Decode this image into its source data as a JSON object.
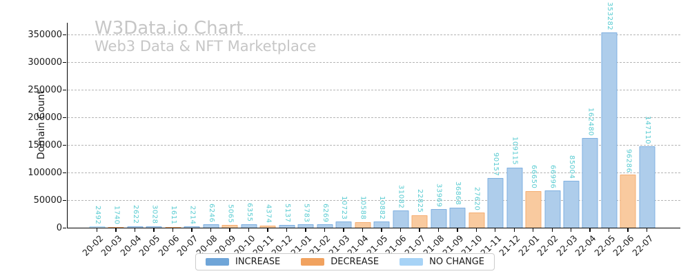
{
  "chart_data": {
    "type": "bar",
    "title": "W3Data.io Chart",
    "subtitle": "Web3 Data & NFT Marketplace",
    "xlabel": "",
    "ylabel": "Domain Count",
    "ylim": [
      0,
      371000
    ],
    "yticks": [
      0,
      50000,
      100000,
      150000,
      200000,
      250000,
      300000,
      350000
    ],
    "grid": "horizontal-dashed",
    "legend_position": "bottom-center",
    "categories": [
      "20-02",
      "20-03",
      "20-04",
      "20-05",
      "20-06",
      "20-07",
      "20-08",
      "20-09",
      "20-10",
      "20-11",
      "20-12",
      "21-01",
      "21-02",
      "21-03",
      "21-04",
      "21-05",
      "21-06",
      "21-07",
      "21-08",
      "21-09",
      "21-10",
      "21-11",
      "21-12",
      "22-01",
      "22-02",
      "22-03",
      "22-04",
      "22-05",
      "22-06",
      "22-07"
    ],
    "values": [
      2492,
      1740,
      2622,
      3028,
      1611,
      2214,
      6246,
      5065,
      6355,
      4374,
      5137,
      5783,
      6269,
      10723,
      10588,
      10882,
      31082,
      22825,
      33969,
      36868,
      27620,
      90157,
      109115,
      66650,
      66996,
      85004,
      162480,
      353282,
      96286,
      147110
    ],
    "directions": [
      "no_change",
      "decrease",
      "increase",
      "increase",
      "decrease",
      "increase",
      "increase",
      "decrease",
      "increase",
      "decrease",
      "increase",
      "increase",
      "increase",
      "increase",
      "decrease",
      "increase",
      "increase",
      "decrease",
      "increase",
      "increase",
      "decrease",
      "increase",
      "increase",
      "decrease",
      "increase",
      "increase",
      "increase",
      "increase",
      "decrease",
      "increase"
    ],
    "legend": [
      {
        "key": "increase",
        "label": "INCREASE"
      },
      {
        "key": "decrease",
        "label": "DECREASE"
      },
      {
        "key": "no_change",
        "label": "NO CHANGE"
      }
    ],
    "colors": {
      "legend_swatch": {
        "increase": "#6FA5D8",
        "decrease": "#F1A25F",
        "no_change": "#A7D3F6"
      },
      "bar_fill": {
        "increase": "#AECDEB",
        "decrease": "#F9CA9F",
        "no_change": "#C9E3F9"
      },
      "bar_edge": {
        "increase": "#7FB0E0",
        "decrease": "#F5AE72",
        "no_change": "#A5D2F4"
      },
      "bar_value_label": "#58CBD1",
      "title_gray": "#C6C6C6",
      "gridline": "#B4B4B4"
    }
  }
}
